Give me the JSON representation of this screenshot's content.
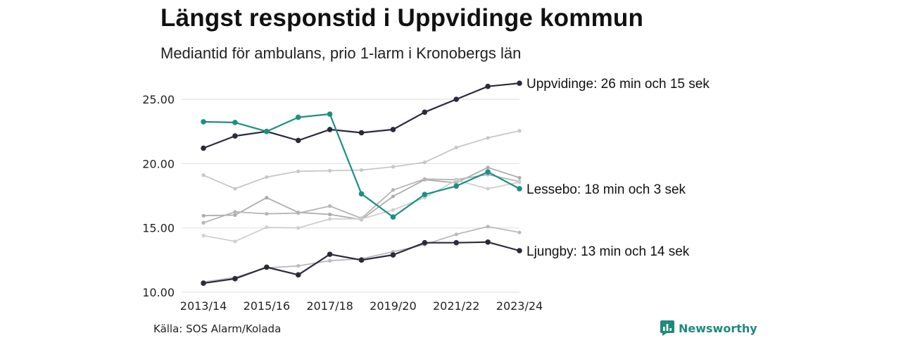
{
  "title": "Längst responstid i Uppvidinge kommun",
  "subtitle": "Mediantid för ambulans, prio 1-larm i Kronobergs län",
  "source": "Källa: SOS Alarm/Kolada",
  "brand": {
    "name": "Newsworthy",
    "logo_icon": "bar-chart-logo-icon",
    "color": "#1e8a7e"
  },
  "chart_data": {
    "type": "line",
    "x": [
      "2013/14",
      "2014/15",
      "2015/16",
      "2016/17",
      "2017/18",
      "2018/19",
      "2019/20",
      "2020/21",
      "2021/22",
      "2022/23",
      "2023/24"
    ],
    "x_tick_labels": [
      "2013/14",
      "2015/16",
      "2017/18",
      "2019/20",
      "2021/22",
      "2023/24"
    ],
    "y_ticks": [
      "10.00",
      "15.00",
      "20.00",
      "25.00"
    ],
    "ylim": [
      10,
      26.8
    ],
    "grid": true,
    "legend": "none",
    "highlight_series": [
      {
        "label": "Uppvidinge: 26 min och 15 sek",
        "color": "#2b2a3b",
        "values": [
          21.2,
          22.15,
          22.5,
          21.8,
          22.65,
          22.4,
          22.65,
          24.0,
          25.0,
          26.0,
          26.25
        ]
      },
      {
        "label": "Lessebo: 18 min och 3 sek",
        "color": "#1a9081",
        "values": [
          23.25,
          23.2,
          22.5,
          23.6,
          23.85,
          17.65,
          15.85,
          17.6,
          18.25,
          19.35,
          18.05
        ]
      },
      {
        "label": "Ljungby: 13 min och 14 sek",
        "color": "#2b2a3b",
        "values": [
          10.7,
          11.05,
          11.95,
          11.35,
          12.95,
          12.5,
          12.9,
          13.85,
          13.85,
          13.9,
          13.23
        ]
      }
    ],
    "background_series": [
      {
        "color": "#c7c7c7",
        "values": [
          19.1,
          18.05,
          18.95,
          19.4,
          19.45,
          19.5,
          19.75,
          20.1,
          21.25,
          22.0,
          22.55
        ]
      },
      {
        "color": "#adadad",
        "values": [
          15.95,
          16.0,
          17.35,
          16.2,
          16.05,
          15.65,
          17.45,
          18.75,
          18.5,
          19.7,
          18.9
        ]
      },
      {
        "color": "#b5b5b5",
        "values": [
          15.4,
          16.25,
          16.1,
          16.15,
          16.7,
          15.75,
          17.95,
          18.8,
          18.75,
          19.15,
          18.6
        ]
      },
      {
        "color": "#cfcfcf",
        "values": [
          14.4,
          13.95,
          15.05,
          15.0,
          15.7,
          15.7,
          16.4,
          17.35,
          18.7,
          18.05,
          18.55
        ]
      },
      {
        "color": "#bababa",
        "values": [
          10.8,
          11.15,
          11.9,
          12.05,
          12.45,
          12.6,
          13.15,
          13.7,
          14.5,
          15.1,
          14.65
        ]
      }
    ]
  }
}
